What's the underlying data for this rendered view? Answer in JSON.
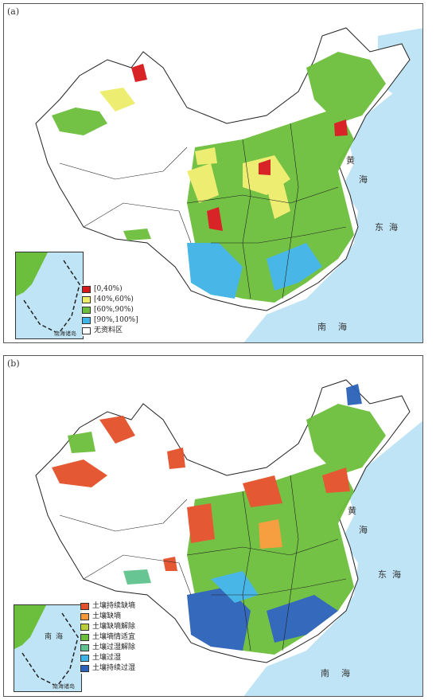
{
  "panel_a": {
    "label": "(a)",
    "legend": [
      {
        "label": "[0,40%)",
        "color": "#d7191c"
      },
      {
        "label": "[40%,60%)",
        "color": "#eded6a"
      },
      {
        "label": "[60%,90%)",
        "color": "#6cbf3c"
      },
      {
        "label": "[90%,100%]",
        "color": "#3fb4e6"
      },
      {
        "label": "无资料区",
        "color": "#ffffff"
      }
    ],
    "sea_labels": {
      "yellow_sea_1": "黄",
      "yellow_sea_2": "海",
      "east_sea_1": "东",
      "east_sea_2": "海",
      "south_sea_1": "南",
      "south_sea_2": "海"
    },
    "inset_label": "南海诸岛"
  },
  "panel_b": {
    "label": "(b)",
    "legend": [
      {
        "label": "土壤持续缺墒",
        "color": "#e4502a"
      },
      {
        "label": "土壤缺墒",
        "color": "#f59a36"
      },
      {
        "label": "土壤缺墒解除",
        "color": "#b8cf3a"
      },
      {
        "label": "土壤墒情适宜",
        "color": "#6cbf3c"
      },
      {
        "label": "土壤过湿解除",
        "color": "#5fc28f"
      },
      {
        "label": "土壤过湿",
        "color": "#3fb4e6"
      },
      {
        "label": "土壤持续过湿",
        "color": "#2b62b8"
      }
    ],
    "sea_labels": {
      "yellow_sea_1": "黄",
      "yellow_sea_2": "海",
      "east_sea_1": "东",
      "east_sea_2": "海",
      "south_sea_1": "南",
      "south_sea_2": "海"
    },
    "inset_sea_1": "南",
    "inset_sea_2": "海",
    "inset_label": "南海诸岛"
  },
  "colors": {
    "sea": "#bfe4f6",
    "border": "#222222"
  }
}
